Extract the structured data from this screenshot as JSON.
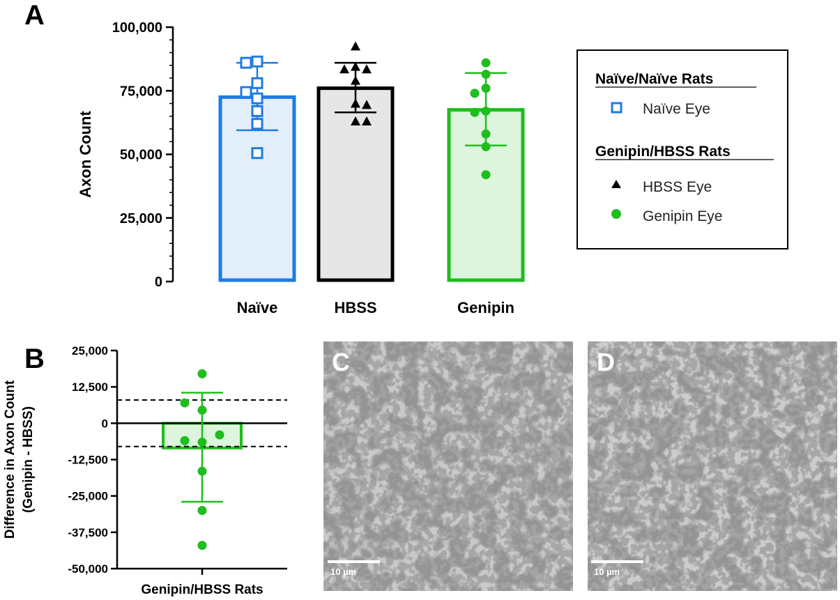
{
  "panel_labels": {
    "a": "A",
    "b": "B",
    "c": "C",
    "d": "D"
  },
  "colors": {
    "naive": "#1E7BE6",
    "hbss": "#000000",
    "genipin": "#1DBE1D",
    "naive_fill": "#E3EEFB",
    "hbss_fill": "#E6E6E6",
    "genipin_fill": "#DDF5DD"
  },
  "chart_data": [
    {
      "type": "bar",
      "panel": "A",
      "title": "",
      "xlabel": "",
      "ylabel": "Axon Count",
      "ylim": [
        0,
        100000
      ],
      "ytick_labels": [
        "0",
        "25,000",
        "50,000",
        "75,000",
        "100,000"
      ],
      "yticks": [
        0,
        25000,
        50000,
        75000,
        100000
      ],
      "categories": [
        "Naïve",
        "HBSS",
        "Genipin"
      ],
      "grid": false,
      "series": [
        {
          "category": "Naïve",
          "mean": 72500,
          "err_low": 59500,
          "err_high": 86000,
          "marker": "open-square",
          "points": [
            86500,
            86000,
            78000,
            74500,
            72000,
            67000,
            62000,
            50500
          ]
        },
        {
          "category": "HBSS",
          "mean": 76000,
          "err_low": 66500,
          "err_high": 86000,
          "marker": "triangle",
          "points": [
            92500,
            84500,
            83500,
            83500,
            79000,
            70000,
            69500,
            63000,
            63000
          ]
        },
        {
          "category": "Genipin",
          "mean": 67500,
          "err_low": 53500,
          "err_high": 82000,
          "marker": "circle",
          "points": [
            86000,
            81500,
            76000,
            74000,
            67000,
            66500,
            58000,
            53000,
            42000
          ]
        }
      ],
      "legend": {
        "placement": "right",
        "groups": [
          {
            "heading": "Naïve/Naïve Rats",
            "entries": [
              {
                "label": "Naïve Eye",
                "marker": "open-square"
              }
            ]
          },
          {
            "heading": "Genipin/HBSS Rats",
            "entries": [
              {
                "label": "HBSS Eye",
                "marker": "triangle"
              },
              {
                "label": "Genipin Eye",
                "marker": "circle"
              }
            ]
          }
        ]
      }
    },
    {
      "type": "bar",
      "panel": "B",
      "title": "",
      "xlabel": "",
      "ylabel_lines": [
        "Difference in Axon Count",
        "(Genipin - HBSS)"
      ],
      "ylim": [
        -50000,
        25000
      ],
      "yticks": [
        -50000,
        -37500,
        -25000,
        -12500,
        0,
        12500,
        25000
      ],
      "ytick_labels": [
        "-50,000",
        "-37,500",
        "-25,000",
        "-12,500",
        "0",
        "12,500",
        "25,000"
      ],
      "categories": [
        "Genipin/HBSS Rats"
      ],
      "mean": -8500,
      "err_low": -27000,
      "err_high": 10500,
      "reference_lines": [
        8000,
        -8000
      ],
      "points": [
        17000,
        7000,
        4500,
        -4000,
        -6000,
        -6500,
        -16500,
        -30000,
        -42000
      ],
      "grid": false
    }
  ],
  "micrographs": [
    {
      "panel": "C",
      "scale_bar": "10 µm"
    },
    {
      "panel": "D",
      "scale_bar": "10 µm"
    }
  ]
}
